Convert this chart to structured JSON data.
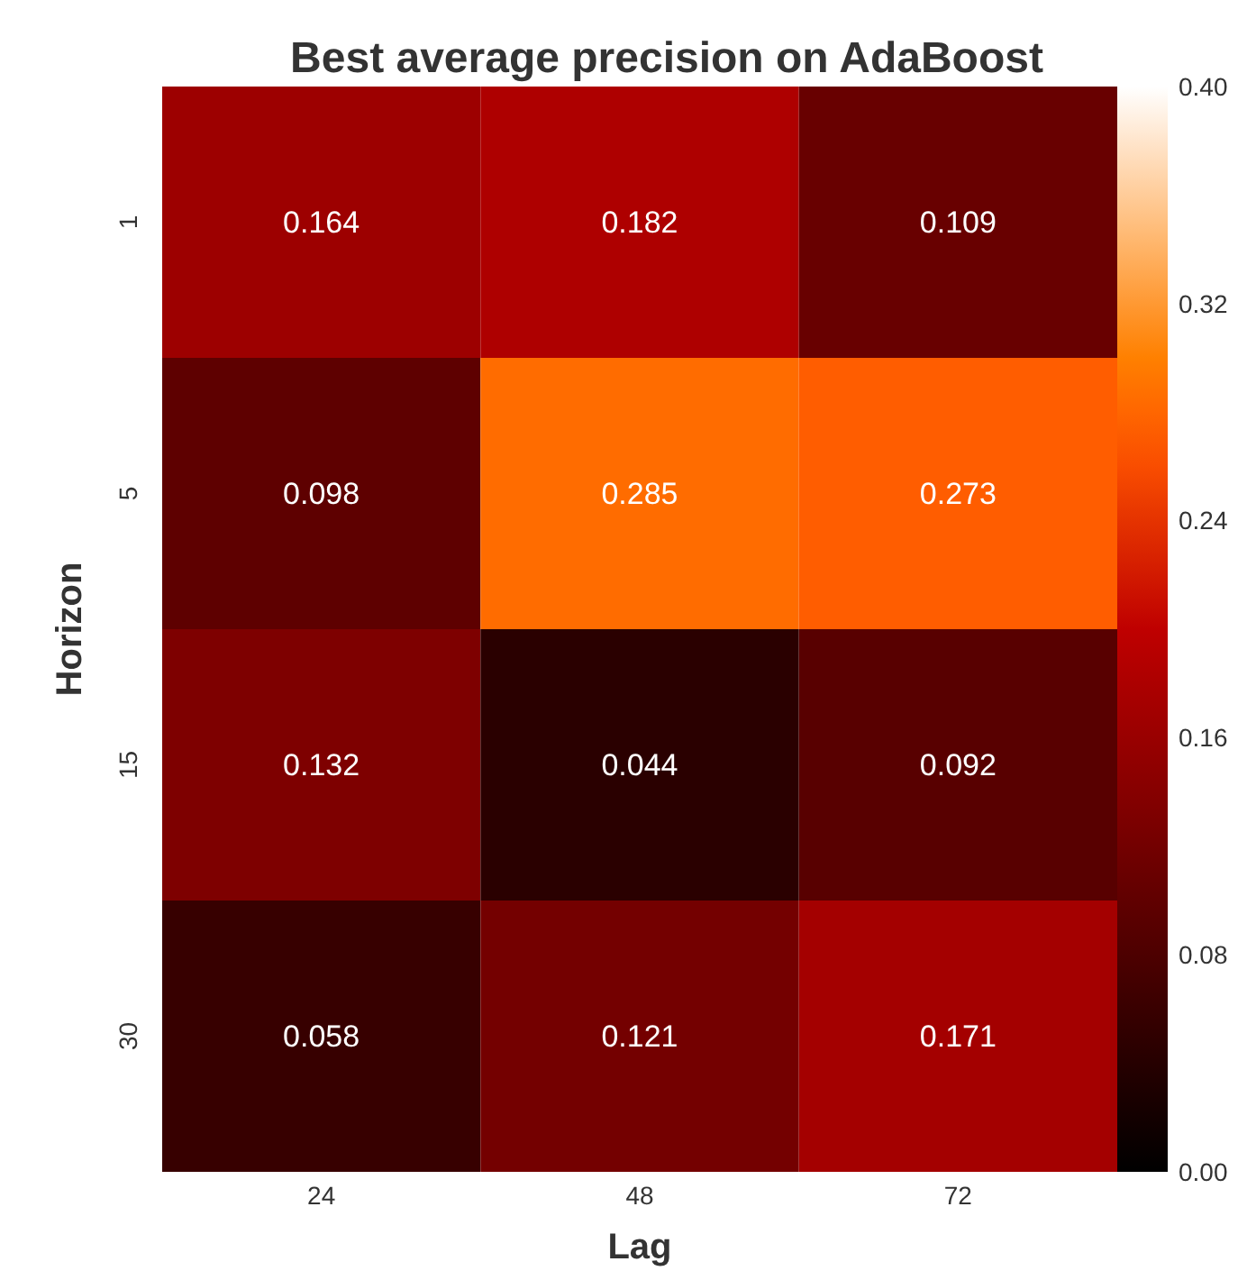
{
  "chart_data": {
    "type": "heatmap",
    "title": "Best average precision on AdaBoost",
    "xlabel": "Lag",
    "ylabel": "Horizon",
    "categories": [
      "24",
      "48",
      "72"
    ],
    "y_categories": [
      "1",
      "5",
      "15",
      "30"
    ],
    "cells": [
      [
        0.164,
        0.182,
        0.109
      ],
      [
        0.098,
        0.285,
        0.273
      ],
      [
        0.132,
        0.044,
        0.092
      ],
      [
        0.058,
        0.121,
        0.171
      ]
    ],
    "data_labels": true,
    "clim": [
      0,
      0.4
    ],
    "cticks": [
      {
        "value": 0,
        "label": "0.00"
      },
      {
        "value": 0.08,
        "label": "0.08"
      },
      {
        "value": 0.16,
        "label": "0.16"
      },
      {
        "value": 0.24,
        "label": "0.24"
      },
      {
        "value": 0.32,
        "label": "0.32"
      },
      {
        "value": 0.4,
        "label": "0.40"
      }
    ]
  }
}
